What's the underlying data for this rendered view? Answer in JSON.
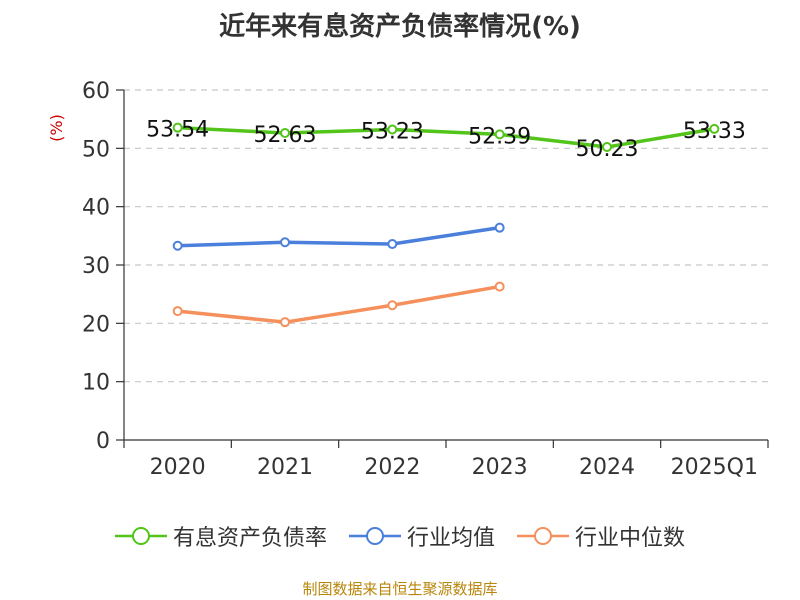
{
  "chart_data": {
    "type": "line",
    "title": "近年来有息资产负债率情况(%)",
    "ylabel": "(%)",
    "xlabel": "",
    "categories": [
      "2020",
      "2021",
      "2022",
      "2023",
      "2024",
      "2025Q1"
    ],
    "ylim": [
      0,
      60
    ],
    "yticks": [
      "0",
      "10",
      "20",
      "30",
      "40",
      "50",
      "60"
    ],
    "grid": true,
    "legend_position": "bottom",
    "series": [
      {
        "name": "有息资产负债率",
        "color": "#52c41a",
        "values": [
          53.54,
          52.63,
          53.23,
          52.39,
          50.23,
          53.33
        ],
        "labels": [
          "53.54",
          "52.63",
          "53.23",
          "52.39",
          "50.23",
          "53.33"
        ]
      },
      {
        "name": "行业均值",
        "color": "#4a7fdc",
        "values": [
          33.3,
          33.9,
          33.6,
          36.4,
          null,
          null
        ]
      },
      {
        "name": "行业中位数",
        "color": "#f5905c",
        "values": [
          22.1,
          20.2,
          23.1,
          26.3,
          null,
          null
        ]
      }
    ]
  },
  "source": "制图数据来自恒生聚源数据库"
}
